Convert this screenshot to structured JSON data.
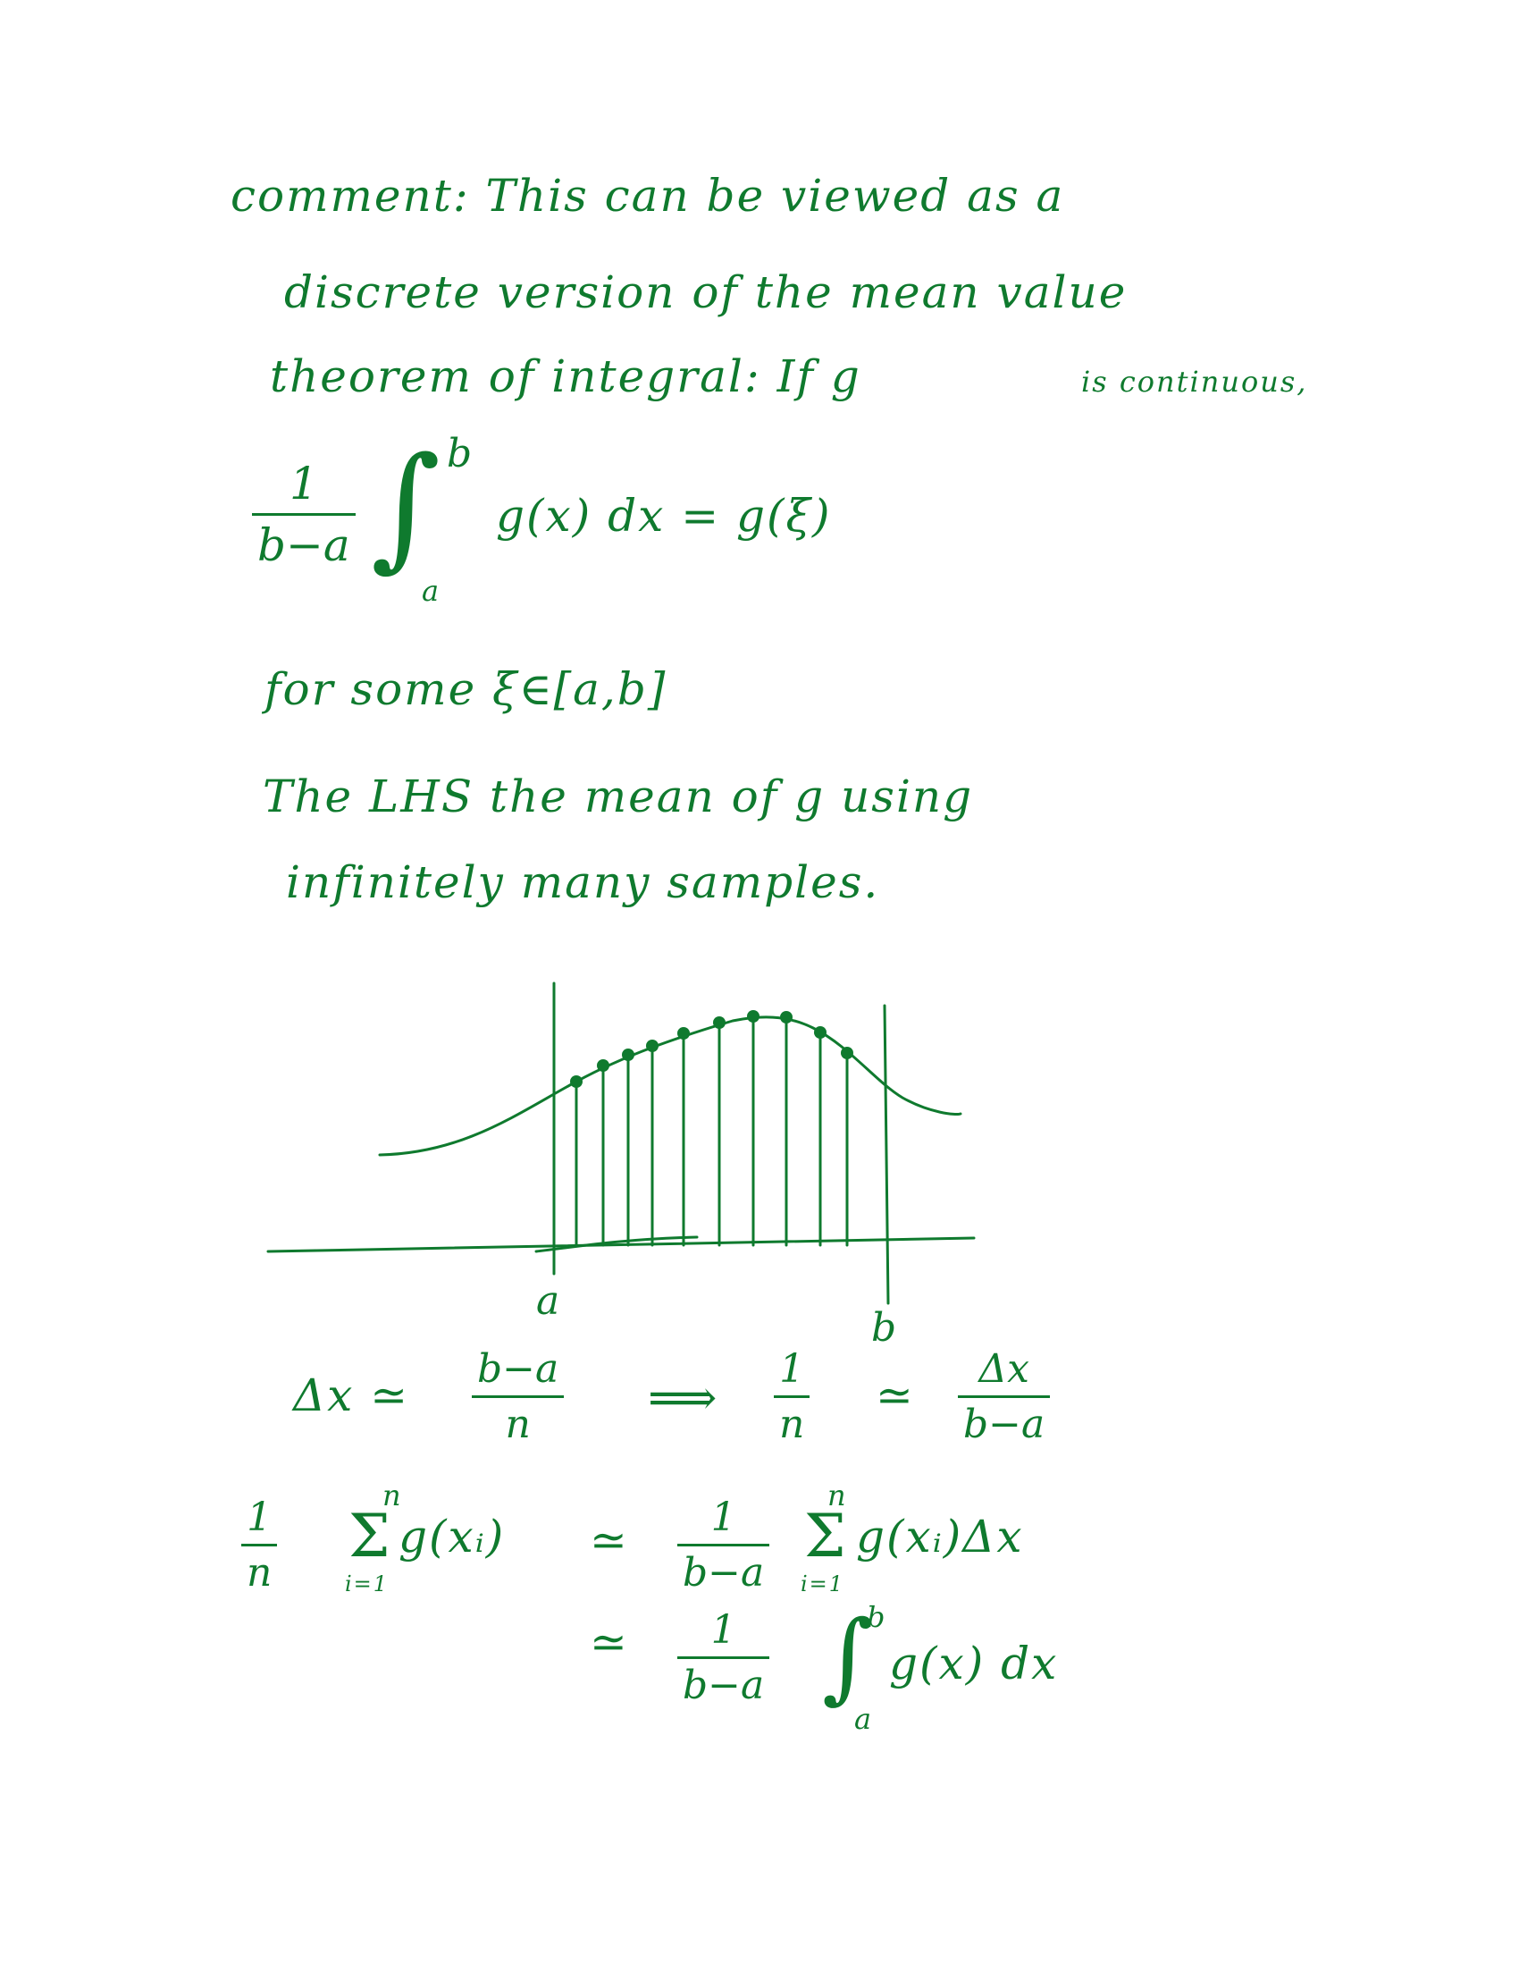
{
  "note": {
    "line1": "comment: This can be viewed as a",
    "line2": "discrete version of the mean value",
    "line3_main": "theorem of integral: If g",
    "line3_small": "is continuous,",
    "mvt": {
      "frac_num": "1",
      "frac_den": "b−a",
      "int_upper": "b",
      "int_lower": "a",
      "integrand": "g(x) dx = g(ξ)"
    },
    "line_some": "for some ξ∈[a,b]",
    "line_lhs": "The LHS the mean of g using",
    "line_inf": "infinitely many samples."
  },
  "figure": {
    "label_a": "a",
    "label_b": "b"
  },
  "relations": {
    "row1": {
      "dx_lhs": "Δx ≃",
      "frac1_num": "b−a",
      "frac1_den": "n",
      "implies": "⟹",
      "frac2_num": "1",
      "frac2_den": "n",
      "approx": "≃",
      "frac3_num": "Δx",
      "frac3_den": "b−a"
    },
    "row2": {
      "frac_num": "1",
      "frac_den": "n",
      "sum_top": "n",
      "sum_bottom": "i=1",
      "sum_symbol": "Σ",
      "term": "g(xᵢ)",
      "approx": "≃",
      "rfrac_num": "1",
      "rfrac_den": "b−a",
      "rsum_top": "n",
      "rsum_bottom": "i=1",
      "rterm": "g(xᵢ)Δx"
    },
    "row3": {
      "approx": "≃",
      "frac_num": "1",
      "frac_den": "b−a",
      "int_upper": "b",
      "int_lower": "a",
      "integrand": "g(x) dx"
    }
  },
  "colors": {
    "ink": "#0f7a2e",
    "background": "#ffffff"
  }
}
